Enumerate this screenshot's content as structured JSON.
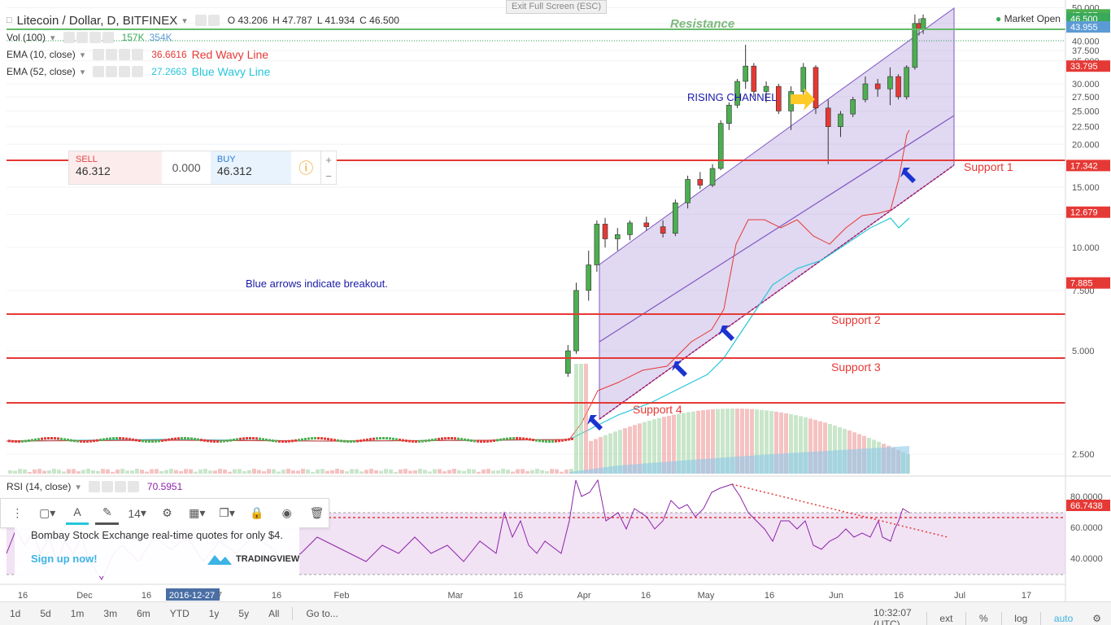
{
  "header": {
    "title": "Litecoin / Dollar, D, BITFINEX",
    "ohlc": {
      "o_label": "O",
      "o": "43.206",
      "h_label": "H",
      "h": "47.787",
      "l_label": "L",
      "l": "41.934",
      "c_label": "C",
      "c": "46.500"
    },
    "market_status": "Market Open",
    "exit_fullscreen": "Exit Full Screen (ESC)"
  },
  "indicators": {
    "volume": {
      "label": "Vol (100)",
      "value1": "157K",
      "value2": "354K"
    },
    "ema10": {
      "label": "EMA (10, close)",
      "value": "36.6616",
      "note": "Red Wavy Line"
    },
    "ema52": {
      "label": "EMA (52, close)",
      "value": "27.2663",
      "note": "Blue Wavy Line"
    },
    "rsi": {
      "label": "RSI (14, close)",
      "value": "70.5951"
    }
  },
  "trade_widget": {
    "sell_label": "SELL",
    "sell_price": "46.312",
    "spread": "0.000",
    "buy_label": "BUY",
    "buy_price": "46.312"
  },
  "annotations": {
    "resistance": "Resistance",
    "rising_channel": "RISING CHANNEL",
    "breakout_note": "Blue arrows indicate breakout.",
    "support1": "Support 1",
    "support2": "Support 2",
    "support3": "Support 3",
    "support4": "Support 4"
  },
  "price_axis": {
    "ticks": [
      "50.000",
      "45.000",
      "40.000",
      "37.500",
      "35.000",
      "30.000",
      "27.500",
      "25.000",
      "22.500",
      "20.000",
      "17.500",
      "15.000",
      "12.500",
      "10.000",
      "7.500",
      "5.000",
      "2.500"
    ],
    "markers": [
      {
        "text": "47.657",
        "color": "#4caf50"
      },
      {
        "text": "46.500",
        "color": "#39a95a"
      },
      {
        "text": "43.955",
        "color": "#5b9bd5"
      },
      {
        "text": "33.795",
        "color": "#e53935"
      },
      {
        "text": "17.342",
        "color": "#e53935"
      },
      {
        "text": "12.679",
        "color": "#e53935"
      },
      {
        "text": "7.885",
        "color": "#e53935"
      }
    ],
    "rsi_ticks": [
      "80.0000",
      "60.0000",
      "40.0000"
    ],
    "rsi_marker": "66.7438"
  },
  "time_axis": {
    "labels": [
      "16",
      "Dec",
      "16",
      "2016-12-27",
      "7",
      "16",
      "Feb",
      "Mar",
      "16",
      "Apr",
      "16",
      "May",
      "16",
      "Jun",
      "16",
      "Jul",
      "17"
    ],
    "clock": "10:32:07 (UTC)"
  },
  "drawing_toolbar": {
    "font_size": "14"
  },
  "ad": {
    "text": "Bombay Stock Exchange real-time quotes for only $4.",
    "signup": "Sign up now!",
    "logo": "TRADINGVIEW"
  },
  "bottom_toolbar": {
    "ranges": [
      "1d",
      "5d",
      "1m",
      "3m",
      "6m",
      "YTD",
      "1y",
      "5y",
      "All"
    ],
    "goto": "Go to...",
    "right": [
      "ext",
      "%",
      "log",
      "auto"
    ]
  },
  "chart_data": {
    "type": "candlestick",
    "title": "Litecoin / Dollar, D, BITFINEX",
    "x_range": [
      "2016-11-16",
      "2017-07-17"
    ],
    "y_range": [
      0,
      50
    ],
    "log_scale": true,
    "support_levels": [
      {
        "name": "Support 1",
        "value": 33.795
      },
      {
        "name": "Support 2",
        "value": 17.342
      },
      {
        "name": "Support 3",
        "value": 12.679
      },
      {
        "name": "Support 4",
        "value": 7.885
      }
    ],
    "resistance_level": {
      "name": "Resistance",
      "value": 47.657
    },
    "last_price": 46.5,
    "ohlc": [
      [
        "2017-03-28",
        4.3,
        5.2,
        4.2,
        5.0
      ],
      [
        "2017-03-30",
        5.0,
        7.9,
        4.9,
        7.5
      ],
      [
        "2017-04-02",
        7.5,
        9.8,
        7.0,
        8.9
      ],
      [
        "2017-04-04",
        8.9,
        12.0,
        8.5,
        11.7
      ],
      [
        "2017-04-06",
        11.7,
        12.2,
        10.0,
        10.6
      ],
      [
        "2017-04-09",
        10.6,
        11.4,
        9.8,
        10.9
      ],
      [
        "2017-04-12",
        10.9,
        12.0,
        10.5,
        11.8
      ],
      [
        "2017-04-16",
        11.8,
        12.3,
        11.2,
        11.5
      ],
      [
        "2017-04-20",
        11.5,
        12.0,
        10.7,
        11.0
      ],
      [
        "2017-04-23",
        11.0,
        13.8,
        10.8,
        13.5
      ],
      [
        "2017-04-26",
        13.5,
        16.2,
        13.0,
        15.8
      ],
      [
        "2017-04-29",
        15.8,
        16.6,
        14.8,
        15.2
      ],
      [
        "2017-05-02",
        15.2,
        17.5,
        15.0,
        17.0
      ],
      [
        "2017-05-04",
        17.0,
        23.5,
        16.8,
        23.0
      ],
      [
        "2017-05-06",
        23.0,
        26.5,
        22.0,
        26.0
      ],
      [
        "2017-05-08",
        26.0,
        31.0,
        25.5,
        30.5
      ],
      [
        "2017-05-10",
        30.5,
        39.0,
        29.0,
        33.8
      ],
      [
        "2017-05-12",
        33.8,
        34.5,
        27.5,
        28.5
      ],
      [
        "2017-05-15",
        28.5,
        30.5,
        26.5,
        29.5
      ],
      [
        "2017-05-18",
        29.5,
        30.0,
        24.5,
        25.0
      ],
      [
        "2017-05-21",
        25.0,
        29.5,
        22.0,
        28.5
      ],
      [
        "2017-05-24",
        28.5,
        34.5,
        26.5,
        33.5
      ],
      [
        "2017-05-27",
        33.5,
        34.0,
        24.5,
        25.5
      ],
      [
        "2017-05-30",
        25.5,
        27.0,
        17.5,
        22.5
      ],
      [
        "2017-06-02",
        22.5,
        25.0,
        21.0,
        24.5
      ],
      [
        "2017-06-05",
        24.5,
        27.5,
        24.0,
        27.0
      ],
      [
        "2017-06-08",
        27.0,
        31.5,
        26.5,
        30.0
      ],
      [
        "2017-06-11",
        30.0,
        31.0,
        27.5,
        29.0
      ],
      [
        "2017-06-14",
        29.0,
        33.5,
        26.0,
        31.5
      ],
      [
        "2017-06-16",
        31.5,
        32.0,
        27.0,
        27.5
      ],
      [
        "2017-06-18",
        27.5,
        34.0,
        27.0,
        33.5
      ],
      [
        "2017-06-20",
        33.5,
        47.8,
        33.0,
        45.0
      ],
      [
        "2017-06-21",
        45.0,
        46.5,
        41.5,
        43.2
      ],
      [
        "2017-06-22",
        43.206,
        47.787,
        41.934,
        46.5
      ]
    ]
  }
}
